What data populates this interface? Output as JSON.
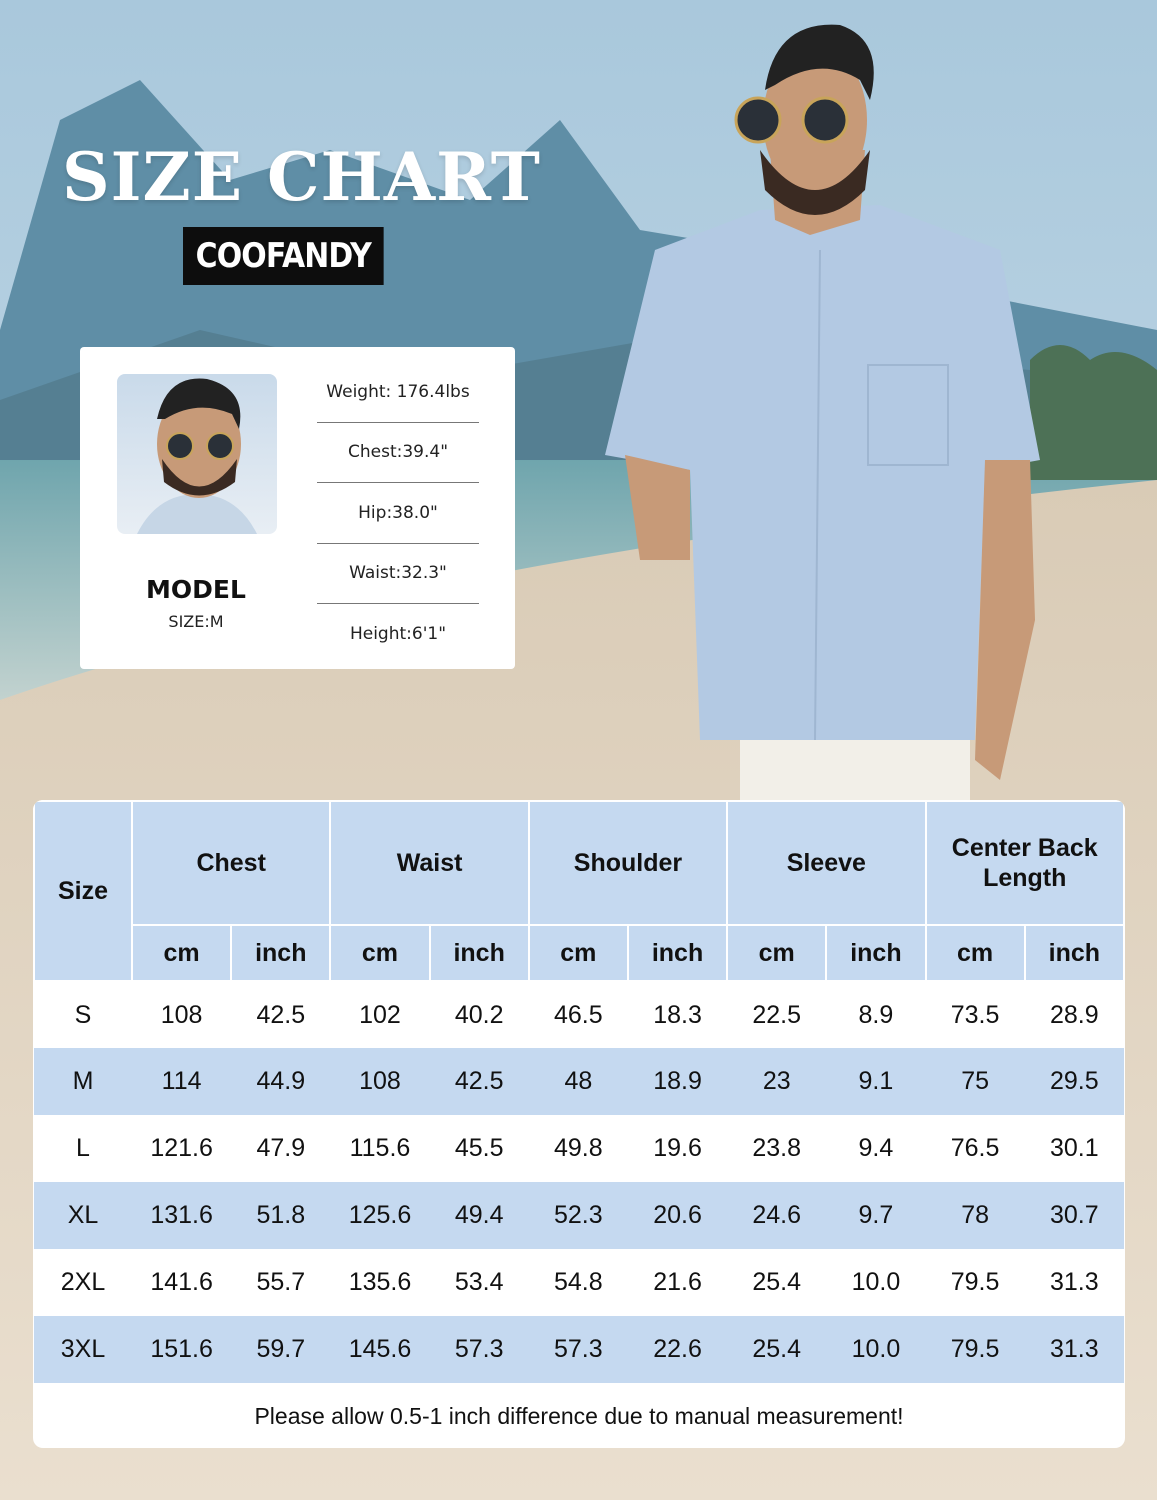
{
  "title": "SIZE CHART",
  "brand": "COOFANDY",
  "model_card": {
    "label": "MODEL",
    "size": "SIZE:M",
    "stats": [
      "Weight: 176.4lbs",
      "Chest:39.4\"",
      "Hip:38.0\"",
      "Waist:32.3\"",
      "Height:6'1\""
    ]
  },
  "table": {
    "size_header": "Size",
    "groups": [
      "Chest",
      "Waist",
      "Shoulder",
      "Sleeve",
      "Center Back Length"
    ],
    "units": [
      "cm",
      "inch"
    ],
    "rows": [
      [
        "S",
        "108",
        "42.5",
        "102",
        "40.2",
        "46.5",
        "18.3",
        "22.5",
        "8.9",
        "73.5",
        "28.9"
      ],
      [
        "M",
        "114",
        "44.9",
        "108",
        "42.5",
        "48",
        "18.9",
        "23",
        "9.1",
        "75",
        "29.5"
      ],
      [
        "L",
        "121.6",
        "47.9",
        "115.6",
        "45.5",
        "49.8",
        "19.6",
        "23.8",
        "9.4",
        "76.5",
        "30.1"
      ],
      [
        "XL",
        "131.6",
        "51.8",
        "125.6",
        "49.4",
        "52.3",
        "20.6",
        "24.6",
        "9.7",
        "78",
        "30.7"
      ],
      [
        "2XL",
        "141.6",
        "55.7",
        "135.6",
        "53.4",
        "54.8",
        "21.6",
        "25.4",
        "10.0",
        "79.5",
        "31.3"
      ],
      [
        "3XL",
        "151.6",
        "59.7",
        "145.6",
        "57.3",
        "57.3",
        "22.6",
        "25.4",
        "10.0",
        "79.5",
        "31.3"
      ]
    ],
    "note": "Please allow 0.5-1 inch difference due to manual measurement!"
  },
  "colors": {
    "header_bg": "#c5d9f0",
    "shirt": "#b3c9e3"
  }
}
